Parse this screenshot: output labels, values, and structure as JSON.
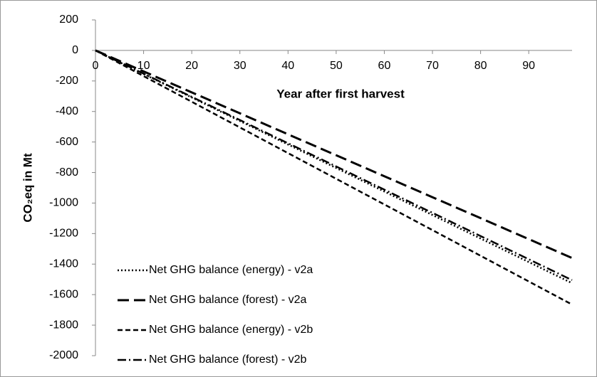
{
  "chart_data": {
    "type": "line",
    "x_label": "Year after first harvest",
    "y_label": "CO₂eq in Mt",
    "x": [
      0,
      99
    ],
    "series": [
      {
        "name": "Net GHG balance (energy) - v2a",
        "color": "#000000",
        "dash": "dotted",
        "values": [
          0,
          -1525
        ]
      },
      {
        "name": "Net GHG balance (forest) - v2a",
        "color": "#000000",
        "dash": "long-dash",
        "values": [
          0,
          -1360
        ]
      },
      {
        "name": "Net GHG balance (energy) - v2b",
        "color": "#000000",
        "dash": "dash",
        "values": [
          0,
          -1665
        ]
      },
      {
        "name": "Net GHG balance (forest) - v2b",
        "color": "#000000",
        "dash": "dash-dot",
        "values": [
          0,
          -1505
        ]
      }
    ],
    "xlim": [
      0,
      99
    ],
    "xticks": [
      0,
      10,
      20,
      30,
      40,
      50,
      60,
      70,
      80,
      90
    ],
    "ylim": [
      -2000,
      200
    ],
    "yticks": [
      -2000,
      -1800,
      -1600,
      -1400,
      -1200,
      -1000,
      -800,
      -600,
      -400,
      -200,
      0,
      200
    ],
    "grid": false,
    "legend": "lower-left"
  }
}
